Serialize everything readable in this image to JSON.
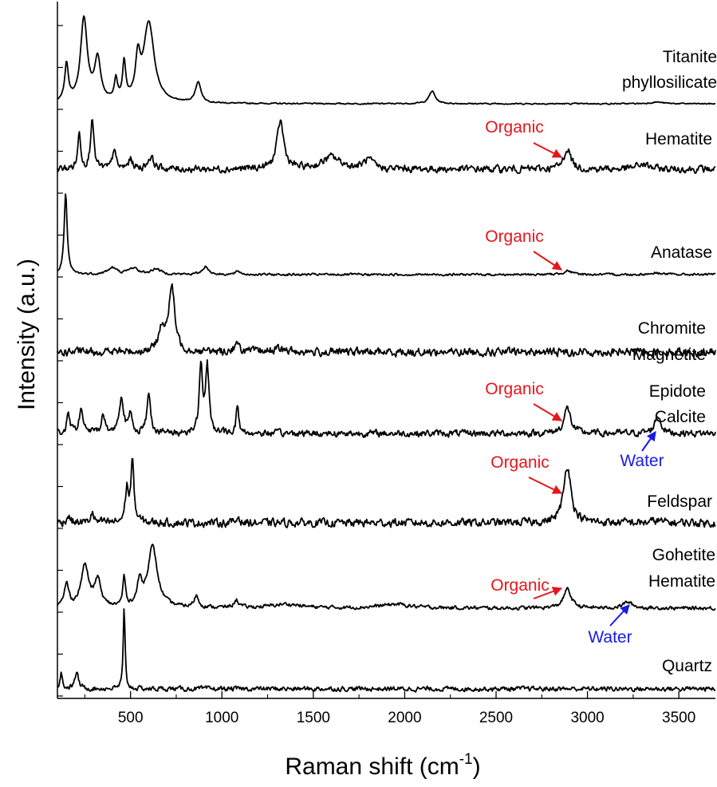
{
  "chart_data": {
    "type": "line",
    "xlabel": "Raman shift (cm",
    "xlabel_sup": "-1",
    "xlabel_end": ")",
    "ylabel": "Intensity (a.u.)",
    "xlim": [
      100,
      3700
    ],
    "x_ticks": [
      500,
      1000,
      1500,
      2000,
      2500,
      3000,
      3500
    ],
    "x_tick_labels": [
      "500",
      "1000",
      "1500",
      "2000",
      "2500",
      "3000",
      "3500"
    ],
    "colors": {
      "trace": "#000000",
      "organic": "#e8141b",
      "water": "#1a1ae6"
    },
    "series": [
      {
        "name": "Titanite phyllosilicate",
        "label_lines": [
          "Titanite",
          "phyllosilicate"
        ],
        "peaks": [
          [
            150,
            0.45,
            12
          ],
          [
            245,
            1.0,
            22
          ],
          [
            320,
            0.5,
            20
          ],
          [
            420,
            0.25,
            10
          ],
          [
            465,
            0.45,
            10
          ],
          [
            540,
            0.45,
            15
          ],
          [
            600,
            0.95,
            35
          ],
          [
            870,
            0.25,
            18
          ],
          [
            2150,
            0.15,
            20
          ],
          [
            3380,
            0.02,
            40
          ]
        ],
        "noise": 0.006
      },
      {
        "name": "Hematite",
        "label_lines": [
          "Hematite"
        ],
        "peaks": [
          [
            220,
            0.6,
            10
          ],
          [
            290,
            0.9,
            10
          ],
          [
            410,
            0.35,
            10
          ],
          [
            500,
            0.15,
            15
          ],
          [
            610,
            0.2,
            20
          ],
          [
            1320,
            0.8,
            22
          ],
          [
            1600,
            0.2,
            60
          ],
          [
            1800,
            0.15,
            30
          ],
          [
            2890,
            0.35,
            22
          ],
          [
            3300,
            0.08,
            40
          ]
        ],
        "noise": 0.05
      },
      {
        "name": "Anatase",
        "label_lines": [
          "Anatase"
        ],
        "peaks": [
          [
            145,
            1.0,
            10
          ],
          [
            400,
            0.08,
            30
          ],
          [
            515,
            0.08,
            30
          ],
          [
            640,
            0.07,
            30
          ],
          [
            910,
            0.1,
            20
          ],
          [
            1090,
            0.04,
            15
          ],
          [
            2890,
            0.05,
            25
          ],
          [
            3380,
            0.02,
            40
          ]
        ],
        "noise": 0.012
      },
      {
        "name": "Chromite Magnetite",
        "label_lines": [
          "Chromite",
          "Magnetite"
        ],
        "peaks": [
          [
            670,
            0.35,
            18
          ],
          [
            725,
            0.95,
            20
          ],
          [
            1080,
            0.1,
            20
          ],
          [
            1300,
            0.04,
            50
          ]
        ],
        "noise": 0.05
      },
      {
        "name": "Epidote Calcite",
        "label_lines": [
          "Epidote",
          "Calcite"
        ],
        "peaks": [
          [
            160,
            0.25,
            10
          ],
          [
            230,
            0.3,
            15
          ],
          [
            350,
            0.25,
            12
          ],
          [
            450,
            0.5,
            15
          ],
          [
            500,
            0.25,
            10
          ],
          [
            600,
            0.55,
            12
          ],
          [
            885,
            0.9,
            11
          ],
          [
            920,
            0.9,
            11
          ],
          [
            1085,
            0.4,
            8
          ],
          [
            2890,
            0.35,
            22
          ],
          [
            3385,
            0.25,
            20
          ]
        ],
        "noise": 0.04
      },
      {
        "name": "Feldspar",
        "label_lines": [
          "Feldspar"
        ],
        "peaks": [
          [
            160,
            0.1,
            12
          ],
          [
            290,
            0.15,
            10
          ],
          [
            480,
            0.5,
            10
          ],
          [
            510,
            0.9,
            10
          ],
          [
            1090,
            0.1,
            8
          ],
          [
            2890,
            0.85,
            24
          ],
          [
            3380,
            0.03,
            30
          ]
        ],
        "noise": 0.05
      },
      {
        "name": "Gohetite Hematite",
        "label_lines": [
          "Gohetite",
          "Hematite"
        ],
        "peaks": [
          [
            150,
            0.3,
            15
          ],
          [
            250,
            0.55,
            25
          ],
          [
            320,
            0.35,
            20
          ],
          [
            465,
            0.4,
            8
          ],
          [
            550,
            0.3,
            15
          ],
          [
            620,
            0.8,
            32
          ],
          [
            860,
            0.15,
            15
          ],
          [
            1080,
            0.1,
            15
          ],
          [
            1350,
            0.05,
            100
          ],
          [
            1950,
            0.05,
            100
          ],
          [
            2890,
            0.25,
            25
          ],
          [
            3220,
            0.08,
            30
          ]
        ],
        "noise": 0.02
      },
      {
        "name": "Quartz",
        "label_lines": [
          "Quartz"
        ],
        "peaks": [
          [
            120,
            0.2,
            8
          ],
          [
            205,
            0.2,
            12
          ],
          [
            465,
            1.0,
            6
          ]
        ],
        "noise": 0.025
      }
    ],
    "annotations": [
      {
        "text": "Organic",
        "kind": "organic",
        "series": "Hematite",
        "x": 2880
      },
      {
        "text": "Organic",
        "kind": "organic",
        "series": "Anatase",
        "x": 2890
      },
      {
        "text": "Organic",
        "kind": "organic",
        "series": "Epidote Calcite",
        "x": 2880
      },
      {
        "text": "Water",
        "kind": "water",
        "series": "Epidote Calcite",
        "x": 3380
      },
      {
        "text": "Organic",
        "kind": "organic",
        "series": "Feldspar",
        "x": 2880
      },
      {
        "text": "Organic",
        "kind": "organic",
        "series": "Gohetite Hematite",
        "x": 2880
      },
      {
        "text": "Water",
        "kind": "water",
        "series": "Gohetite Hematite",
        "x": 3220
      }
    ]
  }
}
